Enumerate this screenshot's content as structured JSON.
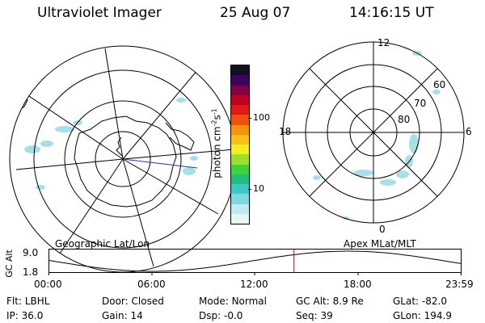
{
  "header": {
    "title": "Ultraviolet Imager",
    "date": "25 Aug 07",
    "time": "14:16:15 UT"
  },
  "left_map": {
    "label": "Geographic Lat/Lon"
  },
  "right_map": {
    "label": "Apex MLat/MLT",
    "mlt_labels": [
      "12",
      "18",
      "6",
      "0"
    ],
    "lat_labels": [
      "60",
      "70",
      "80"
    ]
  },
  "colorbar": {
    "unit_label": "photon cm",
    "unit_sup1": "-2",
    "unit_mid": "s",
    "unit_sup2": "-1",
    "ticks": [
      "100",
      "10"
    ],
    "scale": "log",
    "colors": [
      "#e6f5f7",
      "#bfeaf0",
      "#7fd8e0",
      "#3fc6c8",
      "#20c07a",
      "#3fd23a",
      "#9ce02a",
      "#f0f020",
      "#f8c018",
      "#f89010",
      "#f05010",
      "#e01818",
      "#c00020",
      "#800040",
      "#400060",
      "#101020"
    ]
  },
  "timeline": {
    "y_axis_label": "GC Alt",
    "y_ticks": [
      "9.0",
      "1.8"
    ],
    "x_ticks": [
      "00:00",
      "06:00",
      "12:00",
      "18:00",
      "23:59"
    ],
    "current_hour": 14.27,
    "marker_color": "#cc0000"
  },
  "status": {
    "flt_label": "Flt:",
    "flt_value": "LBHL",
    "door_label": "Door:",
    "door_value": "Closed",
    "mode_label": "Mode:",
    "mode_value": "Normal",
    "gcalt_label": "GC Alt:",
    "gcalt_value": "8.9 Re",
    "glat_label": "GLat:",
    "glat_value": "-82.0",
    "ip_label": "IP:",
    "ip_value": "36.0",
    "gain_label": "Gain:",
    "gain_value": "14",
    "dsp_label": "Dsp:",
    "dsp_value": "-0.0",
    "seq_label": "Seq:",
    "seq_value": "39",
    "glon_label": "GLon:",
    "glon_value": "194.9"
  }
}
